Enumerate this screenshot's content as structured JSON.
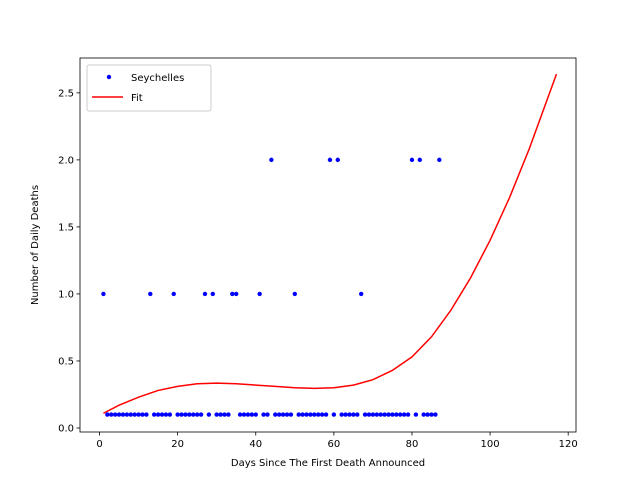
{
  "chart_data": {
    "type": "scatter",
    "xlabel": "Days Since The First Death Announced",
    "ylabel": "Number of Daily Deaths",
    "xlim": [
      -5,
      122
    ],
    "ylim": [
      -0.03,
      2.76
    ],
    "xticks": [
      0,
      20,
      40,
      60,
      80,
      100,
      120
    ],
    "xtick_labels": [
      "0",
      "20",
      "40",
      "60",
      "80",
      "100",
      "120"
    ],
    "yticks": [
      0.0,
      0.5,
      1.0,
      1.5,
      2.0,
      2.5
    ],
    "ytick_labels": [
      "0.0",
      "0.5",
      "1.0",
      "1.5",
      "2.0",
      "2.5"
    ],
    "grid": false,
    "legend_position": "top-left",
    "series": [
      {
        "name": "Seychelles",
        "kind": "points",
        "color": "#0000ff",
        "points": [
          [
            1,
            1
          ],
          [
            2,
            0.1
          ],
          [
            3,
            0.1
          ],
          [
            4,
            0.1
          ],
          [
            5,
            0.1
          ],
          [
            6,
            0.1
          ],
          [
            7,
            0.1
          ],
          [
            8,
            0.1
          ],
          [
            9,
            0.1
          ],
          [
            10,
            0.1
          ],
          [
            11,
            0.1
          ],
          [
            12,
            0.1
          ],
          [
            13,
            1
          ],
          [
            14,
            0.1
          ],
          [
            15,
            0.1
          ],
          [
            16,
            0.1
          ],
          [
            17,
            0.1
          ],
          [
            18,
            0.1
          ],
          [
            19,
            1
          ],
          [
            20,
            0.1
          ],
          [
            21,
            0.1
          ],
          [
            22,
            0.1
          ],
          [
            23,
            0.1
          ],
          [
            24,
            0.1
          ],
          [
            25,
            0.1
          ],
          [
            26,
            0.1
          ],
          [
            27,
            1
          ],
          [
            28,
            0.1
          ],
          [
            29,
            1
          ],
          [
            30,
            0.1
          ],
          [
            31,
            0.1
          ],
          [
            32,
            0.1
          ],
          [
            33,
            0.1
          ],
          [
            34,
            1
          ],
          [
            35,
            1
          ],
          [
            36,
            0.1
          ],
          [
            37,
            0.1
          ],
          [
            38,
            0.1
          ],
          [
            39,
            0.1
          ],
          [
            40,
            0.1
          ],
          [
            41,
            1
          ],
          [
            42,
            0.1
          ],
          [
            43,
            0.1
          ],
          [
            44,
            2
          ],
          [
            45,
            0.1
          ],
          [
            46,
            0.1
          ],
          [
            47,
            0.1
          ],
          [
            48,
            0.1
          ],
          [
            49,
            0.1
          ],
          [
            50,
            1
          ],
          [
            51,
            0.1
          ],
          [
            52,
            0.1
          ],
          [
            53,
            0.1
          ],
          [
            54,
            0.1
          ],
          [
            55,
            0.1
          ],
          [
            56,
            0.1
          ],
          [
            57,
            0.1
          ],
          [
            58,
            0.1
          ],
          [
            59,
            2
          ],
          [
            60,
            0.1
          ],
          [
            61,
            2
          ],
          [
            62,
            0.1
          ],
          [
            63,
            0.1
          ],
          [
            64,
            0.1
          ],
          [
            65,
            0.1
          ],
          [
            66,
            0.1
          ],
          [
            67,
            1
          ],
          [
            68,
            0.1
          ],
          [
            69,
            0.1
          ],
          [
            70,
            0.1
          ],
          [
            71,
            0.1
          ],
          [
            72,
            0.1
          ],
          [
            73,
            0.1
          ],
          [
            74,
            0.1
          ],
          [
            75,
            0.1
          ],
          [
            76,
            0.1
          ],
          [
            77,
            0.1
          ],
          [
            78,
            0.1
          ],
          [
            79,
            0.1
          ],
          [
            80,
            2
          ],
          [
            81,
            0.1
          ],
          [
            82,
            2
          ],
          [
            83,
            0.1
          ],
          [
            84,
            0.1
          ],
          [
            85,
            0.1
          ],
          [
            86,
            0.1
          ],
          [
            87,
            2
          ]
        ]
      },
      {
        "name": "Fit",
        "kind": "line",
        "color": "#ff0000",
        "points": [
          [
            1,
            0.11
          ],
          [
            5,
            0.17
          ],
          [
            10,
            0.23
          ],
          [
            15,
            0.28
          ],
          [
            20,
            0.31
          ],
          [
            25,
            0.33
          ],
          [
            30,
            0.335
          ],
          [
            35,
            0.33
          ],
          [
            40,
            0.32
          ],
          [
            45,
            0.31
          ],
          [
            50,
            0.3
          ],
          [
            55,
            0.295
          ],
          [
            60,
            0.3
          ],
          [
            65,
            0.32
          ],
          [
            70,
            0.36
          ],
          [
            75,
            0.43
          ],
          [
            80,
            0.53
          ],
          [
            85,
            0.68
          ],
          [
            90,
            0.88
          ],
          [
            95,
            1.12
          ],
          [
            100,
            1.4
          ],
          [
            105,
            1.72
          ],
          [
            110,
            2.08
          ],
          [
            115,
            2.48
          ],
          [
            117,
            2.64
          ]
        ]
      }
    ]
  }
}
